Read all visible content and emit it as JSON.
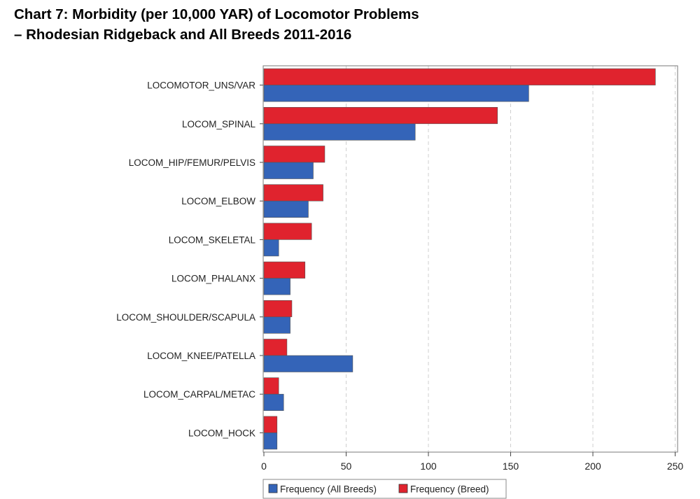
{
  "title_line1": "Chart 7: Morbidity (per 10,000 YAR) of Locomotor Problems",
  "title_line2": "–  Rhodesian Ridgeback and All Breeds 2011-2016",
  "chart_data": {
    "type": "bar",
    "orientation": "horizontal",
    "categories": [
      "LOCOMOTOR_UNS/VAR",
      "LOCOM_SPINAL",
      "LOCOM_HIP/FEMUR/PELVIS",
      "LOCOM_ELBOW",
      "LOCOM_SKELETAL",
      "LOCOM_PHALANX",
      "LOCOM_SHOULDER/SCAPULA",
      "LOCOM_KNEE/PATELLA",
      "LOCOM_CARPAL/METAC",
      "LOCOM_HOCK"
    ],
    "series": [
      {
        "name": "Frequency (Breed)",
        "color": "#e0232e",
        "values": [
          238,
          142,
          37,
          36,
          29,
          25,
          17,
          14,
          9,
          8
        ]
      },
      {
        "name": "Frequency (All Breeds)",
        "color": "#3464b8",
        "values": [
          161,
          92,
          30,
          27,
          9,
          16,
          16,
          54,
          12,
          8
        ]
      }
    ],
    "xlim": [
      0,
      250
    ],
    "xticks": [
      0,
      50,
      100,
      150,
      200,
      250
    ],
    "xlabel": "",
    "ylabel": "",
    "grid": true,
    "legend_position": "bottom-center",
    "legend_entries": [
      "Frequency (All Breeds)",
      "Frequency (Breed)"
    ]
  }
}
